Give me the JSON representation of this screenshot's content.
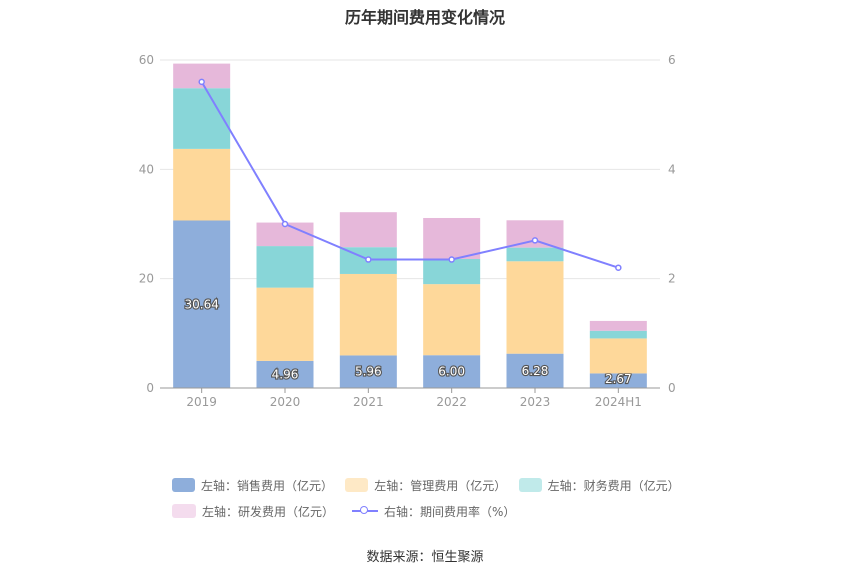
{
  "chart_data": {
    "type": "bar",
    "title": "历年期间费用变化情况",
    "categories": [
      "2019",
      "2020",
      "2021",
      "2022",
      "2023",
      "2024H1"
    ],
    "stacked": true,
    "series": [
      {
        "name": "左轴：销售费用（亿元）",
        "color": "#8eaedb",
        "legend_color": "#8eaedb",
        "values": [
          30.64,
          4.96,
          5.96,
          6.0,
          6.28,
          2.67
        ],
        "labels_shown": true
      },
      {
        "name": "左轴：管理费用（亿元）",
        "color": "#fed89a",
        "legend_color": "#fee9c6",
        "values": [
          13.1,
          13.4,
          14.9,
          13.0,
          16.9,
          6.4
        ]
      },
      {
        "name": "左轴：财务费用（亿元）",
        "color": "#88d6d8",
        "legend_color": "#c0eaea",
        "values": [
          11.1,
          7.6,
          4.9,
          4.6,
          2.5,
          1.4
        ]
      },
      {
        "name": "左轴：研发费用（亿元）",
        "color": "#e6b8da",
        "legend_color": "#f4dcee",
        "values": [
          4.5,
          4.3,
          6.4,
          7.5,
          5.0,
          1.8
        ]
      }
    ],
    "line_series": [
      {
        "name": "右轴：期间费用率（%）",
        "color": "#8080ff",
        "axis": "right",
        "values": [
          5.6,
          3.0,
          2.35,
          2.35,
          2.7,
          2.2
        ]
      }
    ],
    "left_axis": {
      "min": 0,
      "max": 60,
      "ticks": [
        "0",
        "20",
        "40",
        "60"
      ]
    },
    "right_axis": {
      "min": 0,
      "max": 6,
      "ticks": [
        "0",
        "2",
        "4",
        "6"
      ]
    },
    "grid": true,
    "legend_position": "bottom"
  },
  "legend": {
    "row1": [
      "左轴：销售费用（亿元）",
      "左轴：管理费用（亿元）",
      "左轴：财务费用（亿元）"
    ],
    "row2": [
      "左轴：研发费用（亿元）",
      "右轴：期间费用率（%）"
    ]
  },
  "source": "数据来源：恒生聚源"
}
